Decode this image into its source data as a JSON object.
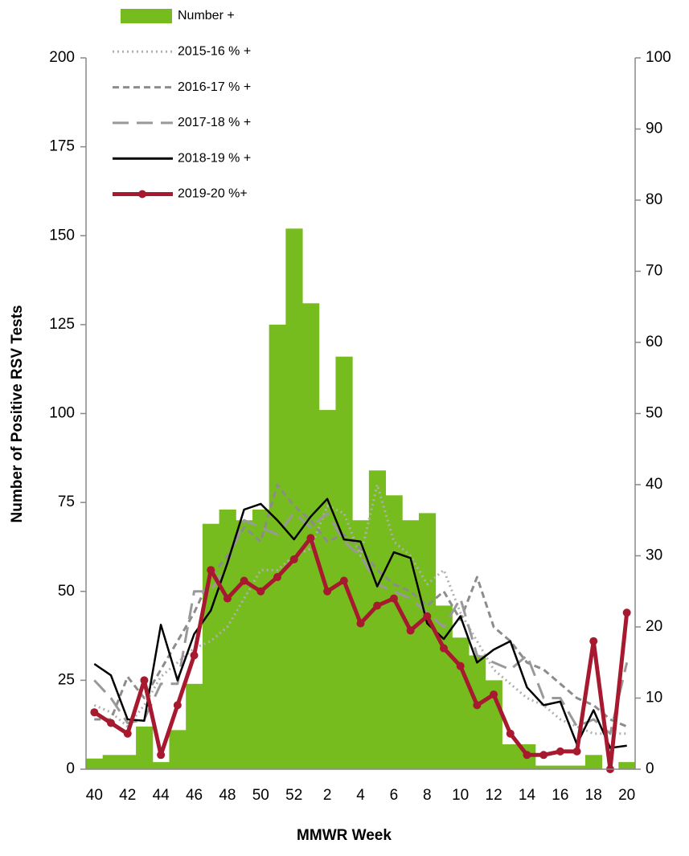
{
  "chart_data": {
    "type": "bar",
    "y_label": "Number of Positive RSV Tests",
    "x_label": "MMWR Week",
    "categories": [
      "40",
      null,
      "42",
      null,
      "44",
      null,
      "46",
      null,
      "48",
      null,
      "50",
      null,
      "52",
      null,
      "2",
      null,
      "4",
      null,
      "6",
      null,
      "8",
      null,
      "10",
      null,
      "12",
      null,
      "14",
      null,
      "16",
      null,
      "18",
      null,
      "20"
    ],
    "ylim": [
      0,
      200
    ],
    "yticks": [
      0,
      25,
      50,
      75,
      100,
      125,
      150,
      175,
      200
    ],
    "y2lim": [
      0,
      100
    ],
    "y2ticks": [
      0,
      10,
      20,
      30,
      40,
      50,
      60,
      70,
      80,
      90,
      100
    ],
    "legend": "top-left",
    "series": [
      {
        "name": "Number +",
        "type": "bar",
        "color": "#77bc1f",
        "values": [
          3,
          4,
          4,
          12,
          2,
          11,
          24,
          69,
          73,
          70,
          73,
          125,
          152,
          131,
          101,
          116,
          70,
          84,
          77,
          70,
          72,
          46,
          37,
          32,
          25,
          7,
          7,
          1,
          1,
          1,
          4,
          0,
          2
        ]
      },
      {
        "name": "2015-16 % +",
        "type": "line",
        "axis": "y2",
        "color": "#b0b0b0",
        "dash": "dotted",
        "values": [
          9,
          8,
          6,
          9,
          13,
          15,
          17,
          18,
          20,
          24,
          28,
          28,
          30,
          31,
          37,
          36,
          30,
          40,
          32,
          30,
          26,
          28,
          22,
          18,
          14,
          12,
          10,
          9,
          7,
          6,
          5,
          5,
          5
        ]
      },
      {
        "name": "2016-17 % +",
        "type": "line",
        "axis": "y2",
        "color": "#8c8c8c",
        "dash": "dashed",
        "values": [
          7,
          7,
          13,
          10,
          14,
          18,
          22,
          27,
          30,
          34,
          32,
          40,
          37,
          35,
          32,
          33,
          31,
          28,
          26,
          25,
          23,
          25,
          21,
          27,
          20,
          18,
          15,
          14,
          12,
          10,
          9,
          7,
          6
        ]
      },
      {
        "name": "2017-18 % +",
        "type": "line",
        "axis": "y2",
        "color": "#999999",
        "dash": "long-dash",
        "values": [
          12.5,
          10,
          6.5,
          7,
          12,
          12,
          25,
          25,
          29,
          35,
          34,
          33,
          36,
          34,
          36,
          32,
          30,
          26,
          25,
          24,
          22,
          20,
          24,
          16,
          15,
          14,
          16,
          10,
          10,
          6,
          7,
          5,
          15
        ]
      },
      {
        "name": "2018-19 % +",
        "type": "line",
        "axis": "y2",
        "color": "#000000",
        "dash": "solid",
        "values": [
          14.8,
          13.2,
          7,
          6.8,
          20.3,
          12.5,
          19,
          22.3,
          29,
          36.5,
          37.3,
          35,
          32.3,
          35.5,
          38,
          32.3,
          32,
          25.7,
          30.5,
          29.7,
          20.5,
          18.3,
          21.5,
          15,
          16.8,
          18,
          11.5,
          9,
          9.5,
          3.5,
          8.3,
          3,
          3.3
        ]
      },
      {
        "name": "2019-20 %+",
        "type": "line",
        "axis": "y2",
        "color": "#a6192e",
        "dash": "solid",
        "marker": "circle",
        "values": [
          8,
          6.5,
          5,
          12.5,
          2,
          9,
          16,
          28,
          24,
          26.5,
          25,
          27,
          29.5,
          32.5,
          25,
          26.5,
          20.5,
          23,
          24,
          19.5,
          21.5,
          17,
          14.5,
          9,
          10.5,
          5,
          2,
          2,
          2.5,
          2.5,
          18,
          0,
          22
        ]
      }
    ]
  }
}
